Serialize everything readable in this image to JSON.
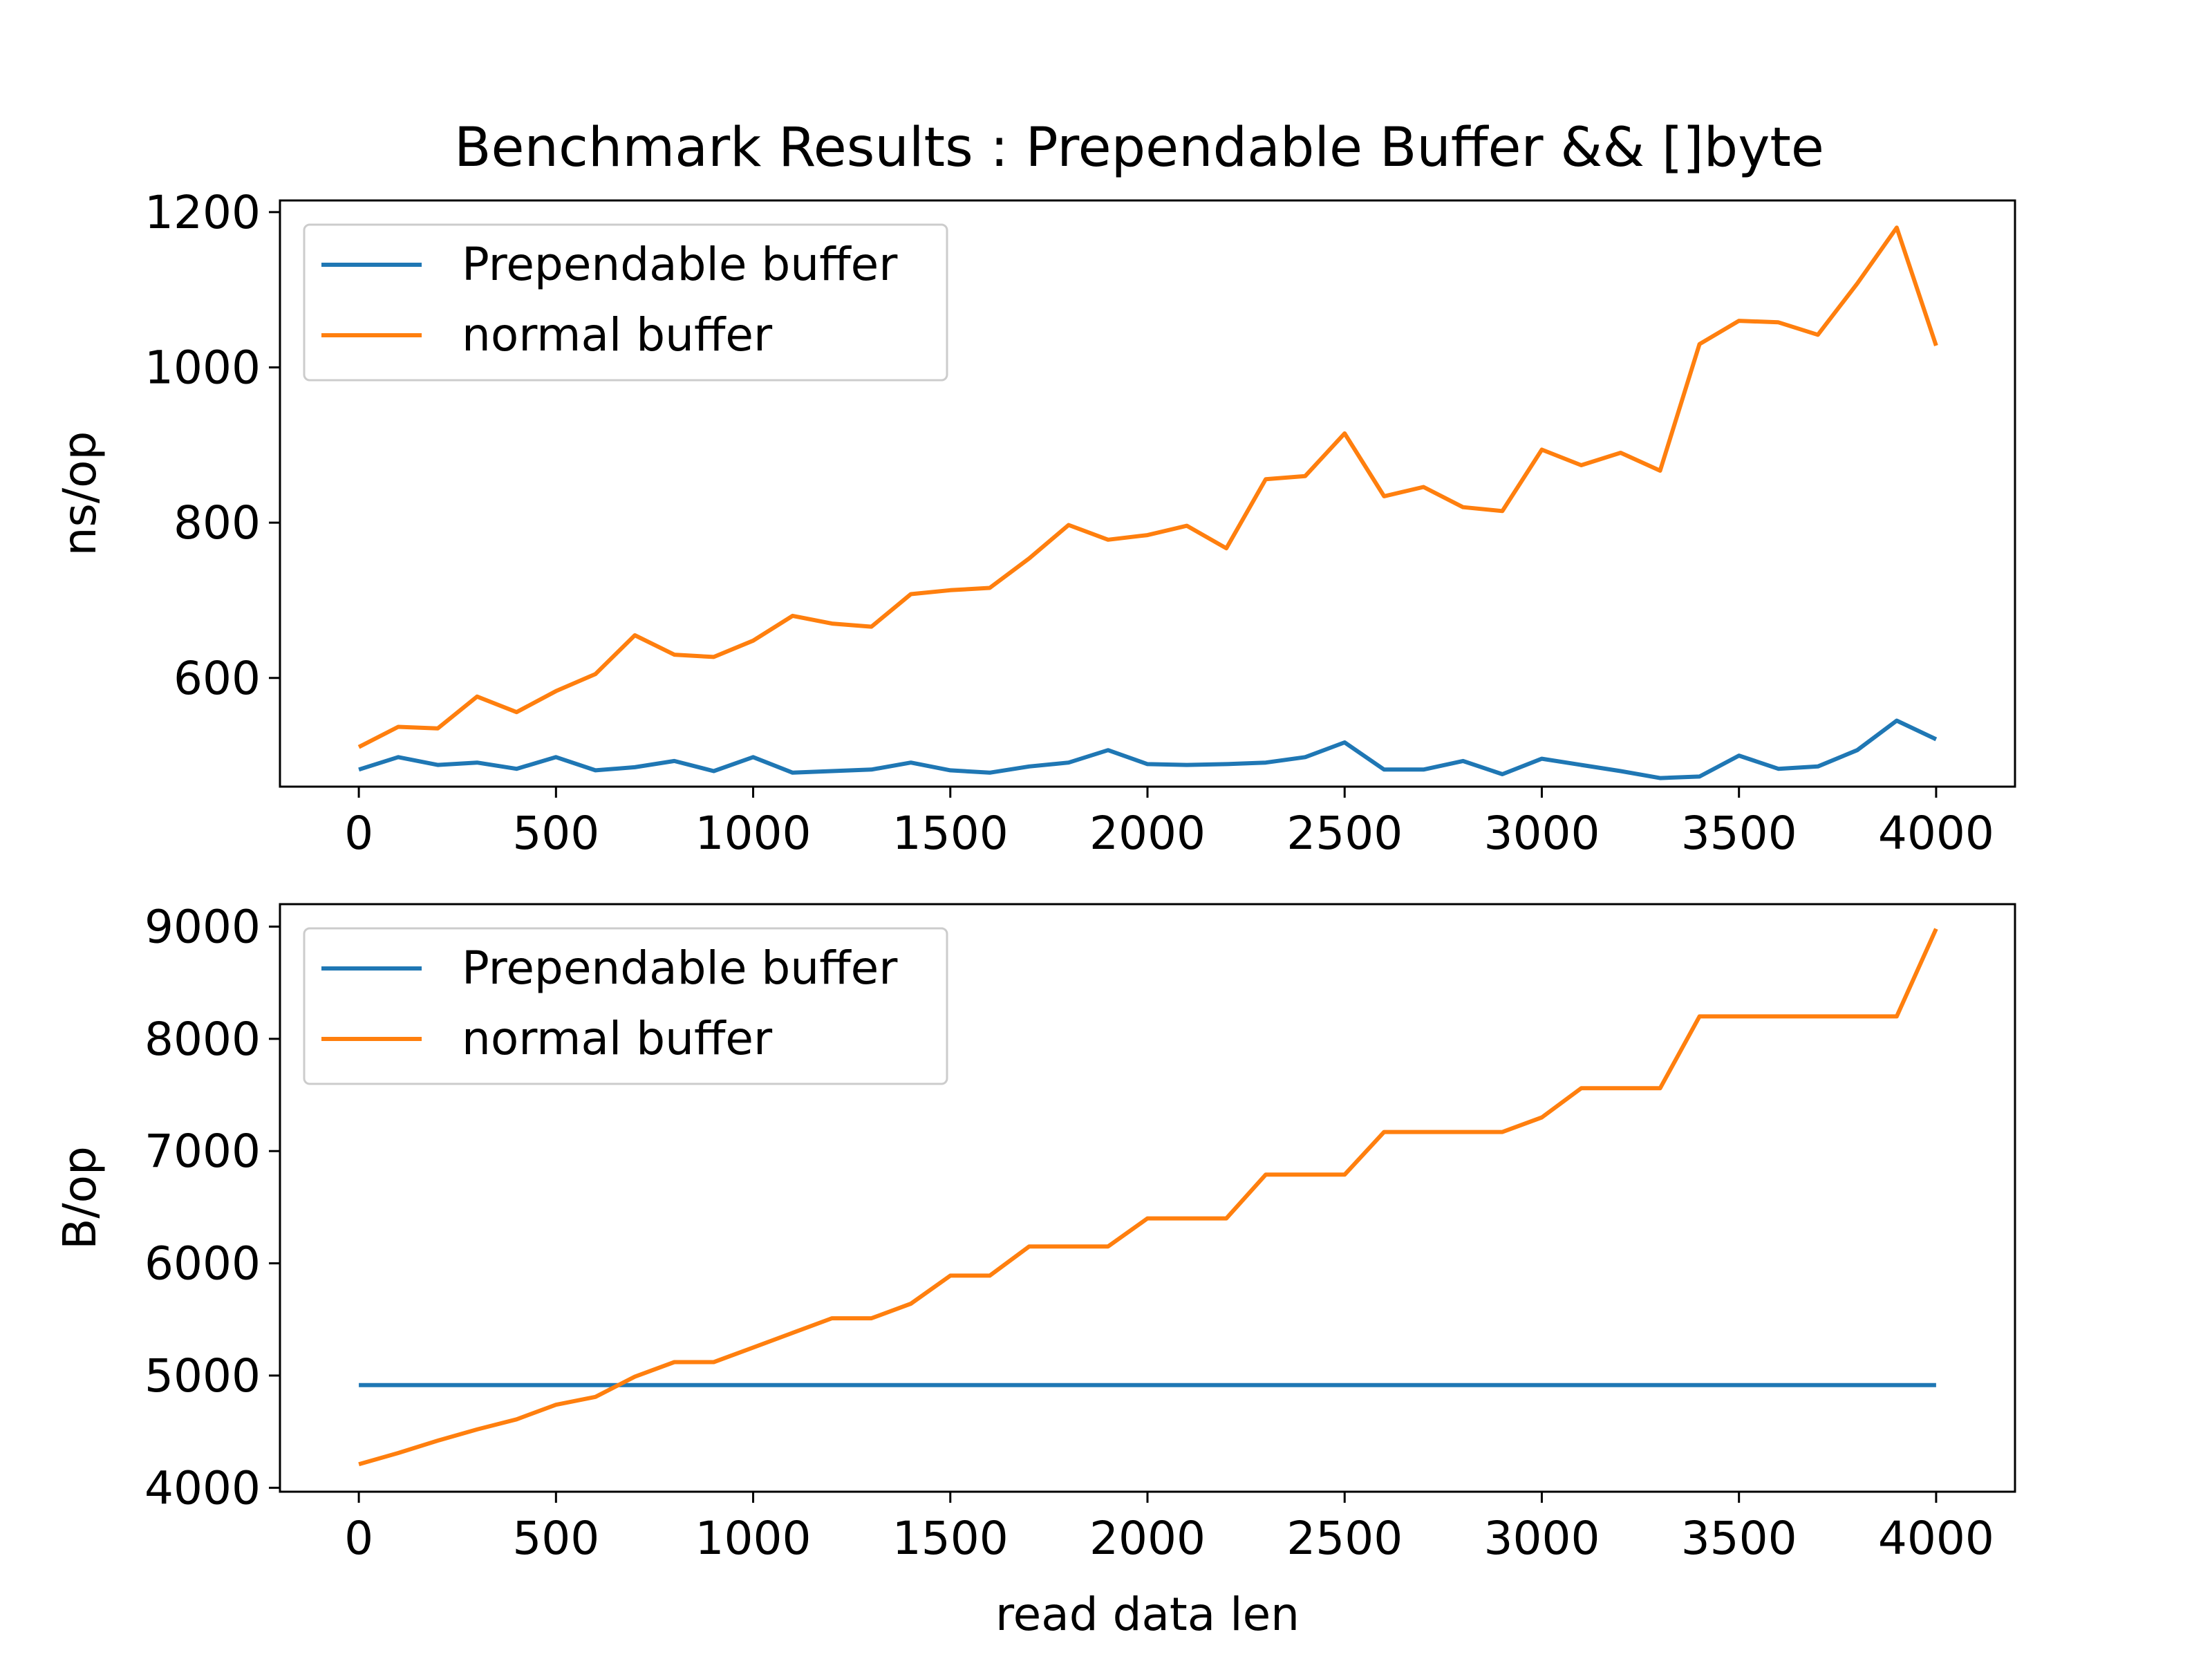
{
  "title": "Benchmark Results : Prependable Buffer && []byte",
  "colors": {
    "prependable": "#1f77b4",
    "normal": "#ff7f0e"
  },
  "chart_data": [
    {
      "type": "line",
      "title": "Benchmark Results : Prependable Buffer && []byte",
      "xlabel": "",
      "ylabel": "ns/op",
      "xlim": [
        -200,
        4200
      ],
      "ylim": [
        460,
        1215
      ],
      "xticks": [
        0,
        500,
        1000,
        1500,
        2000,
        2500,
        3000,
        3500,
        4000
      ],
      "yticks": [
        600,
        800,
        1000,
        1200
      ],
      "legend": "upper-left",
      "grid": false,
      "x": [
        0,
        100,
        200,
        300,
        400,
        500,
        600,
        700,
        800,
        900,
        1000,
        1100,
        1200,
        1300,
        1400,
        1500,
        1600,
        1700,
        1800,
        1900,
        2000,
        2100,
        2200,
        2300,
        2400,
        2500,
        2600,
        2700,
        2800,
        2900,
        3000,
        3100,
        3200,
        3300,
        3400,
        3500,
        3600,
        3700,
        3800,
        3900,
        4000
      ],
      "series": [
        {
          "name": "Prependable buffer",
          "color": "#1f77b4",
          "values": [
            482,
            498,
            488,
            491,
            483,
            498,
            481,
            485,
            493,
            480,
            498,
            478,
            480,
            482,
            491,
            481,
            478,
            486,
            491,
            507,
            489,
            488,
            489,
            491,
            498,
            517,
            482,
            482,
            493,
            476,
            496,
            488,
            480,
            471,
            473,
            500,
            483,
            486,
            507,
            545,
            521
          ]
        },
        {
          "name": "normal buffer",
          "color": "#ff7f0e",
          "values": [
            511,
            537,
            535,
            576,
            556,
            583,
            605,
            655,
            630,
            627,
            648,
            680,
            670,
            666,
            708,
            713,
            716,
            754,
            797,
            778,
            784,
            796,
            767,
            856,
            860,
            915,
            834,
            846,
            820,
            815,
            894,
            874,
            890,
            867,
            1030,
            1060,
            1058,
            1042,
            1108,
            1180,
            1028
          ]
        }
      ]
    },
    {
      "type": "line",
      "title": "",
      "xlabel": "read data len",
      "ylabel": "B/op",
      "xlim": [
        -200,
        4200
      ],
      "ylim": [
        3965,
        9200
      ],
      "xticks": [
        0,
        500,
        1000,
        1500,
        2000,
        2500,
        3000,
        3500,
        4000
      ],
      "yticks": [
        4000,
        5000,
        6000,
        7000,
        8000,
        9000
      ],
      "legend": "upper-left",
      "grid": false,
      "x": [
        0,
        100,
        200,
        300,
        400,
        500,
        600,
        700,
        800,
        900,
        1000,
        1100,
        1200,
        1300,
        1400,
        1500,
        1600,
        1700,
        1800,
        1900,
        2000,
        2100,
        2200,
        2300,
        2400,
        2500,
        2600,
        2700,
        2800,
        2900,
        3000,
        3100,
        3200,
        3300,
        3400,
        3500,
        3600,
        3700,
        3800,
        3900,
        4000
      ],
      "series": [
        {
          "name": "Prependable buffer",
          "color": "#1f77b4",
          "values": [
            4915,
            4915,
            4915,
            4915,
            4915,
            4915,
            4915,
            4915,
            4915,
            4915,
            4915,
            4915,
            4915,
            4915,
            4915,
            4915,
            4915,
            4915,
            4915,
            4915,
            4915,
            4915,
            4915,
            4915,
            4915,
            4915,
            4915,
            4915,
            4915,
            4915,
            4915,
            4915,
            4915,
            4915,
            4915,
            4915,
            4915,
            4915,
            4915,
            4915,
            4915
          ]
        },
        {
          "name": "normal buffer",
          "color": "#ff7f0e",
          "values": [
            4210,
            4310,
            4420,
            4520,
            4610,
            4740,
            4810,
            4990,
            5120,
            5120,
            5250,
            5380,
            5510,
            5510,
            5640,
            5890,
            5890,
            6150,
            6150,
            6150,
            6400,
            6400,
            6400,
            6790,
            6790,
            6790,
            7170,
            7170,
            7170,
            7170,
            7300,
            7560,
            7560,
            7560,
            8200,
            8200,
            8200,
            8200,
            8200,
            8200,
            8980
          ]
        }
      ]
    }
  ]
}
